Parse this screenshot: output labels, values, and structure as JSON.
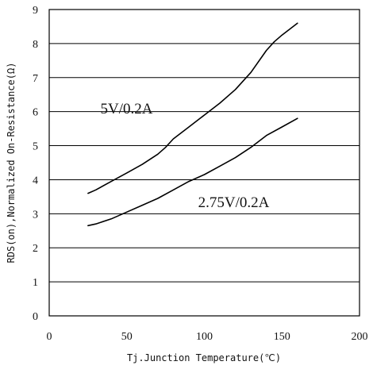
{
  "chart_data": {
    "type": "line",
    "title": "",
    "xlabel": "Tj.Junction Temperature(℃)",
    "ylabel": "RDS(on),Normalized On-Resistance(Ω)",
    "xlim": [
      0,
      200
    ],
    "ylim": [
      0,
      9
    ],
    "xticks": [
      "0",
      "50",
      "100",
      "150",
      "200"
    ],
    "yticks": [
      "0",
      "1",
      "2",
      "3",
      "4",
      "5",
      "6",
      "7",
      "8",
      "9"
    ],
    "grid": "horizontal",
    "series": [
      {
        "name": "5V/0.2A",
        "x": [
          25,
          30,
          40,
          50,
          60,
          70,
          75,
          80,
          90,
          100,
          110,
          120,
          130,
          140,
          145,
          150,
          160
        ],
        "y": [
          3.6,
          3.7,
          3.95,
          4.2,
          4.45,
          4.75,
          4.95,
          5.2,
          5.55,
          5.9,
          6.25,
          6.65,
          7.15,
          7.8,
          8.05,
          8.25,
          8.6
        ]
      },
      {
        "name": "2.75V/0.2A",
        "x": [
          25,
          30,
          40,
          50,
          60,
          70,
          80,
          90,
          100,
          110,
          120,
          130,
          140,
          150,
          160
        ],
        "y": [
          2.65,
          2.7,
          2.85,
          3.05,
          3.25,
          3.45,
          3.7,
          3.95,
          4.15,
          4.4,
          4.65,
          4.95,
          5.3,
          5.55,
          5.8
        ]
      }
    ]
  }
}
